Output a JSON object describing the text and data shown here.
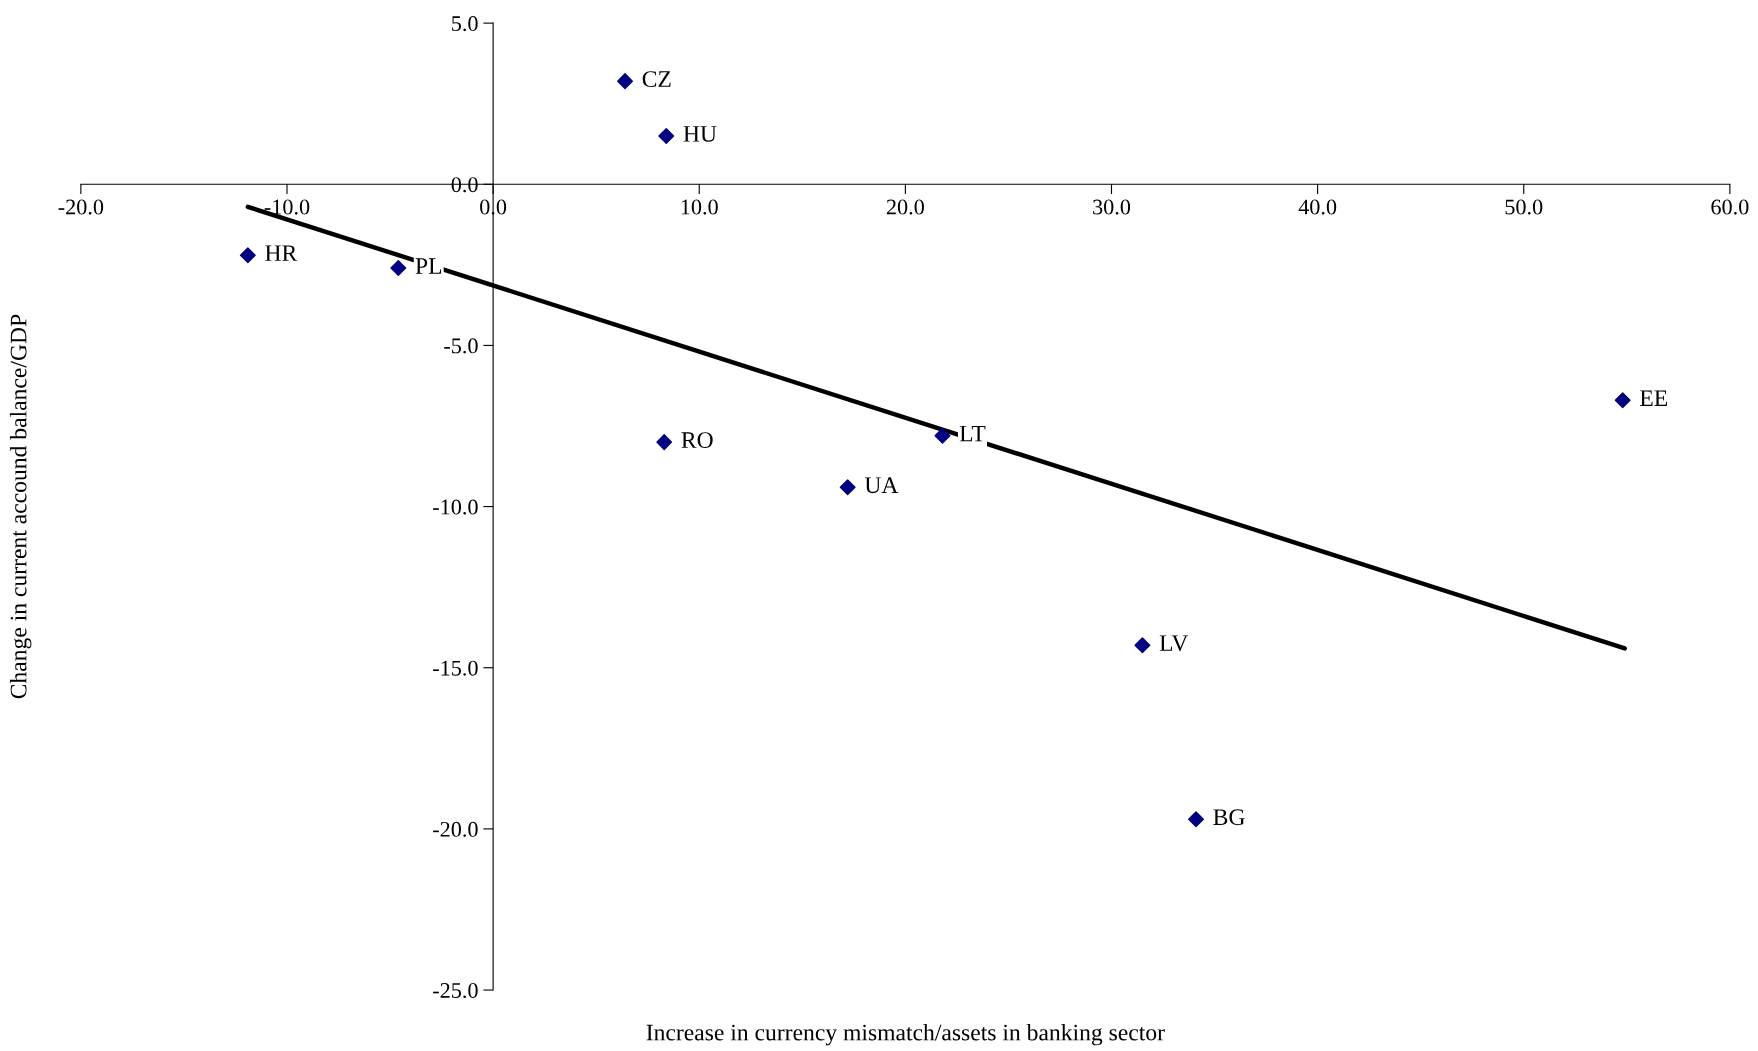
{
  "chart_data": {
    "type": "scatter",
    "xlabel": "Increase in currency mismatch/assets in banking sector",
    "ylabel": "Change in current accound balance/GDP",
    "marker": "diamond",
    "grid": false,
    "legend": false,
    "xlim": [
      -20,
      60
    ],
    "ylim": [
      -25,
      5
    ],
    "xticks": [
      {
        "value": -20,
        "label": "-20.0"
      },
      {
        "value": -10,
        "label": "-10.0"
      },
      {
        "value": 0,
        "label": "0.0"
      },
      {
        "value": 10,
        "label": "10.0"
      },
      {
        "value": 20,
        "label": "20.0"
      },
      {
        "value": 30,
        "label": "30.0"
      },
      {
        "value": 40,
        "label": "40.0"
      },
      {
        "value": 50,
        "label": "50.0"
      },
      {
        "value": 60,
        "label": "60.0"
      }
    ],
    "yticks": [
      {
        "value": -25,
        "label": "-25.0"
      },
      {
        "value": -20,
        "label": "-20.0"
      },
      {
        "value": -15,
        "label": "-15.0"
      },
      {
        "value": -10,
        "label": "-10.0"
      },
      {
        "value": -5,
        "label": "-5.0"
      },
      {
        "value": 0,
        "label": "0.0"
      },
      {
        "value": 5,
        "label": "5.0"
      }
    ],
    "series": [
      {
        "color": "#000080",
        "x": [
          6.4,
          8.4,
          -11.9,
          -4.6,
          8.3,
          17.2,
          21.8,
          54.8,
          31.5,
          34.1
        ],
        "values": [
          3.2,
          1.5,
          -2.2,
          -2.6,
          -8.0,
          -9.4,
          -7.8,
          -6.7,
          -14.3,
          -19.7
        ]
      },
      {
        "type": "line",
        "color": "#000000",
        "marker": "none",
        "x": [
          -11.9,
          54.9
        ],
        "values": [
          -0.7,
          -14.4
        ]
      }
    ],
    "annotations": [
      {
        "text": "CZ",
        "x": 6.4,
        "y": 3.2
      },
      {
        "text": "HU",
        "x": 8.4,
        "y": 1.5
      },
      {
        "text": "HR",
        "x": -11.9,
        "y": -2.2
      },
      {
        "text": "PL",
        "x": -4.6,
        "y": -2.6
      },
      {
        "text": "RO",
        "x": 8.3,
        "y": -8.0
      },
      {
        "text": "UA",
        "x": 17.2,
        "y": -9.4
      },
      {
        "text": "LT",
        "x": 21.8,
        "y": -7.8
      },
      {
        "text": "EE",
        "x": 54.8,
        "y": -6.7
      },
      {
        "text": "LV",
        "x": 31.5,
        "y": -14.3
      },
      {
        "text": "BG",
        "x": 34.1,
        "y": -19.7
      }
    ]
  }
}
